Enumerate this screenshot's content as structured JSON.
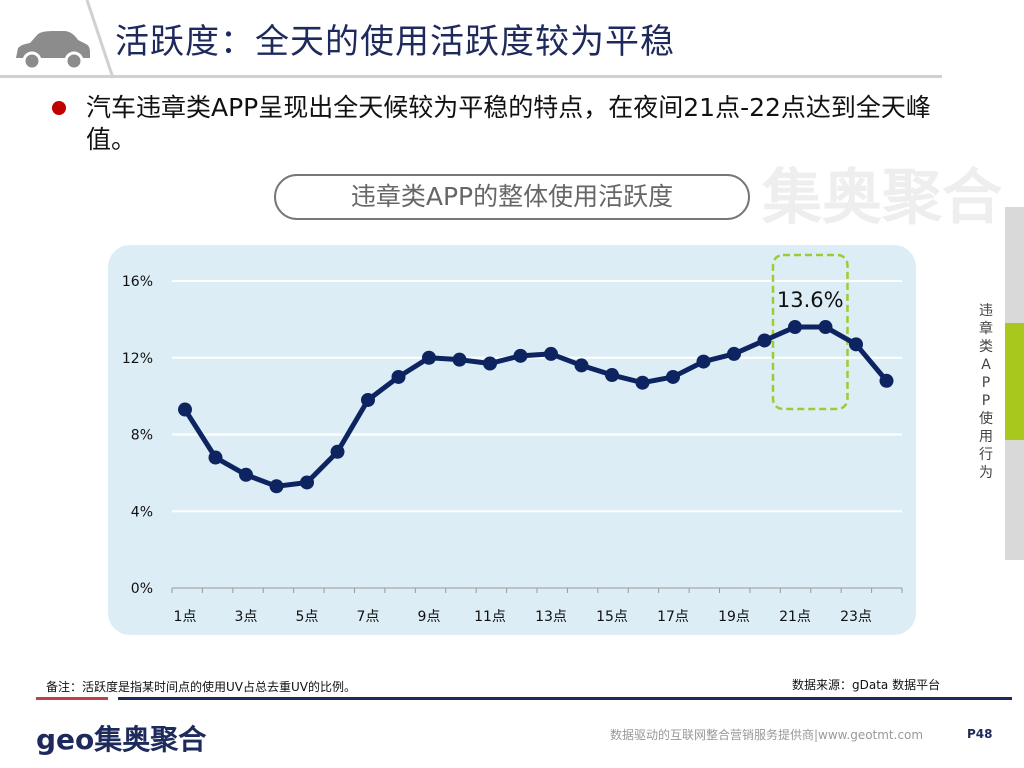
{
  "header": {
    "title": "活跃度：全天的使用活跃度较为平稳",
    "icon": "car-icon"
  },
  "bullet": {
    "text": "汽车违章类APP呈现出全天候较为平稳的特点，在夜间21点-22点达到全天峰值。"
  },
  "chart_subtitle": "违章类APP的整体使用活跃度",
  "sidebar": {
    "label": "违章类APP使用行为"
  },
  "watermark": "集奥聚合",
  "footer": {
    "note": "备注：活跃度是指某时间点的使用UV占总去重UV的比例。",
    "source": "数据来源：gData 数据平台",
    "logo": "geo集奥聚合",
    "slogan": "数据驱动的互联网整合营销服务提供商|www.geotmt.com",
    "page": "P48"
  },
  "colors": {
    "line": "#0d2461",
    "highlight": "#9acd32",
    "accent": "#c00000",
    "plot_bg": "#dcedf5"
  },
  "chart_data": {
    "type": "line",
    "categories": [
      "1点",
      "2点",
      "3点",
      "4点",
      "5点",
      "6点",
      "7点",
      "8点",
      "9点",
      "10点",
      "11点",
      "12点",
      "13点",
      "14点",
      "15点",
      "16点",
      "17点",
      "18点",
      "19点",
      "20点",
      "21点",
      "22点",
      "23点",
      "24点"
    ],
    "tick_labels": [
      "1点",
      "3点",
      "5点",
      "7点",
      "9点",
      "11点",
      "13点",
      "15点",
      "17点",
      "19点",
      "21点",
      "23点"
    ],
    "values": [
      9.3,
      6.8,
      5.9,
      5.3,
      5.5,
      7.1,
      9.8,
      11.0,
      12.0,
      11.9,
      11.7,
      12.1,
      12.2,
      11.6,
      11.1,
      10.7,
      11.0,
      11.8,
      12.2,
      12.9,
      13.6,
      13.6,
      12.7,
      10.8
    ],
    "ylim": [
      0,
      16
    ],
    "yticks": [
      "0%",
      "4%",
      "8%",
      "12%",
      "16%"
    ],
    "grid": true,
    "annotation": {
      "text": "13.6%",
      "range": [
        "21点",
        "22点"
      ]
    }
  }
}
